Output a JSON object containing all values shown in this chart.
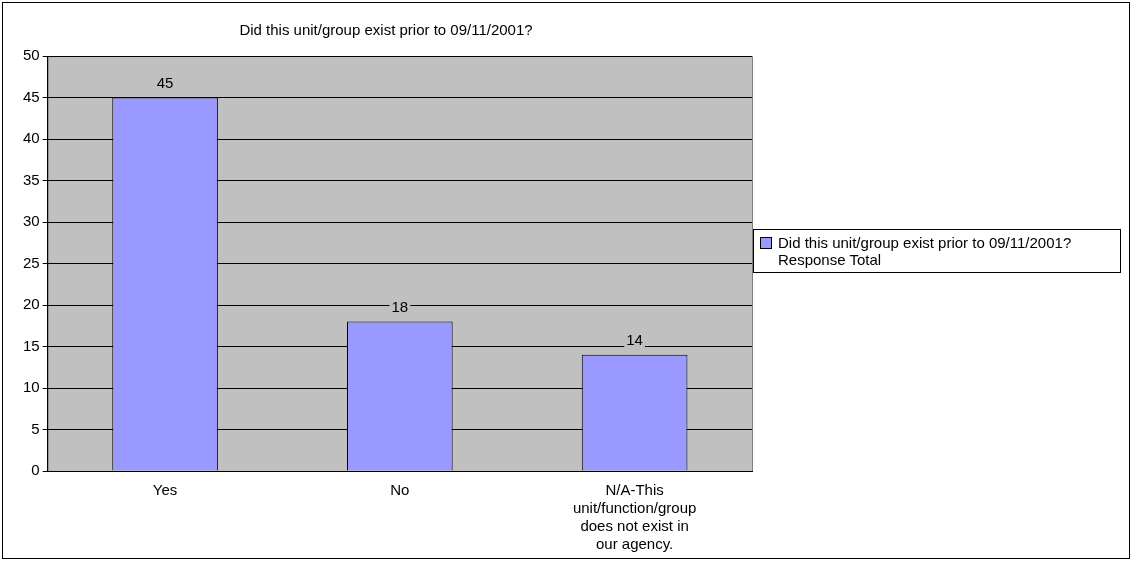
{
  "chart_data": {
    "type": "bar",
    "title": "Did this unit/group exist prior to 09/11/2001?",
    "categories": [
      "Yes",
      "No",
      "N/A-This unit/function/group does not exist in our agency."
    ],
    "series": [
      {
        "name": "Did this unit/group exist prior to 09/11/2001?  Response Total",
        "color": "#9999ff",
        "values": [
          45,
          18,
          14
        ]
      }
    ],
    "ylim": [
      0,
      50
    ],
    "yticks": [
      0,
      5,
      10,
      15,
      20,
      25,
      30,
      35,
      40,
      45,
      50
    ],
    "grid": "y",
    "legend": "right",
    "data_labels": true
  }
}
